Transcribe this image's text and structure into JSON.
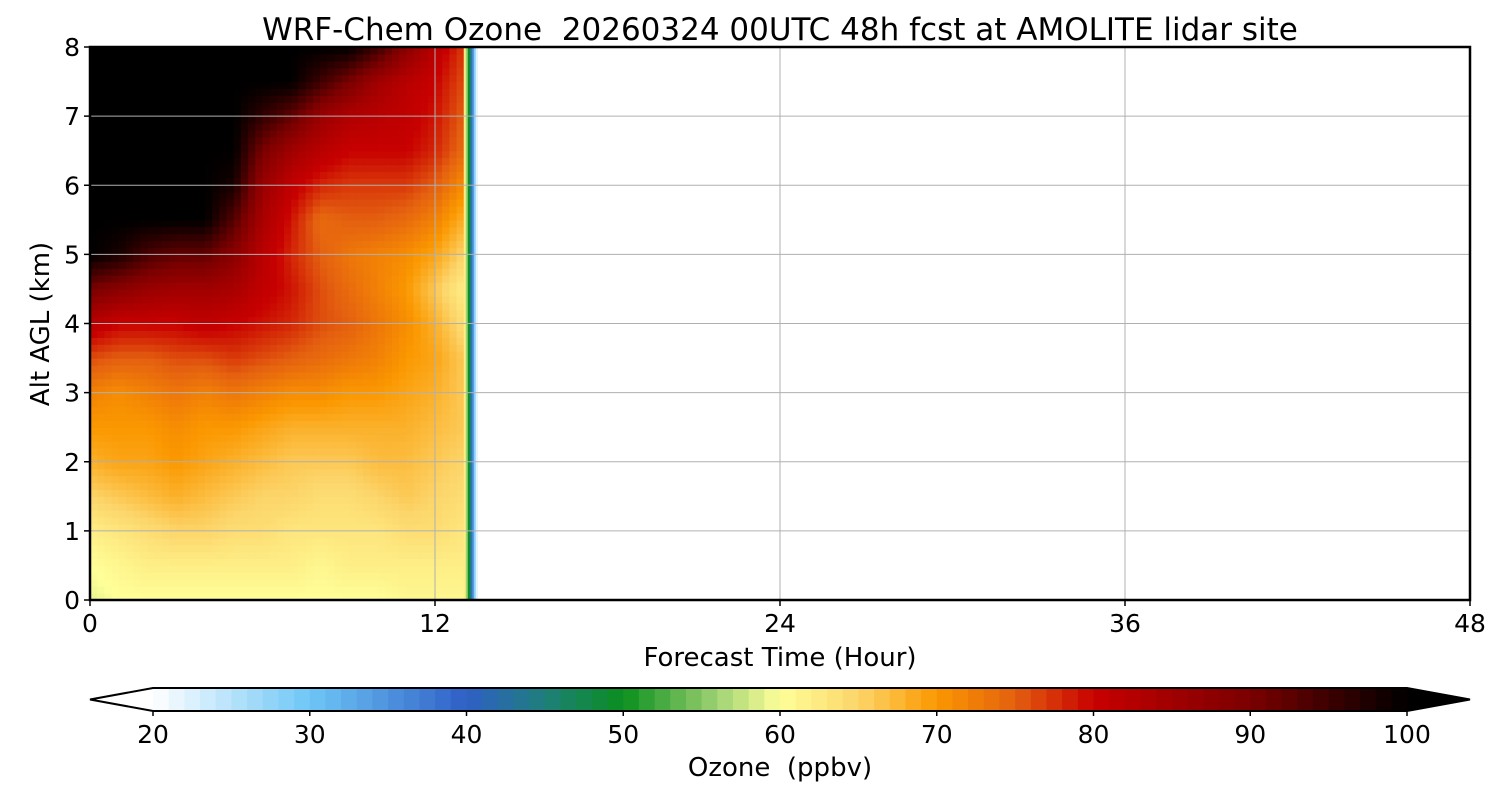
{
  "chart_data": {
    "type": "heatmap",
    "title": "WRF-Chem Ozone  20260324 00UTC 48h fcst at AMOLITE lidar site",
    "xlabel": "Forecast Time (Hour)",
    "ylabel": "Alt AGL (km)",
    "xlim": [
      0,
      48
    ],
    "ylim": [
      0,
      8
    ],
    "x_ticks": [
      0,
      12,
      24,
      36,
      48
    ],
    "y_ticks": [
      0,
      1,
      2,
      3,
      4,
      5,
      6,
      7,
      8
    ],
    "grid": true,
    "data_hours": [
      0,
      1,
      2,
      3,
      4,
      5,
      6,
      7,
      8,
      9,
      10,
      11,
      12,
      13
    ],
    "altitudes_km": [
      0,
      0.5,
      1,
      1.5,
      2,
      2.5,
      3,
      3.5,
      4,
      4.5,
      5,
      5.5,
      6,
      6.5,
      7,
      7.5,
      8
    ],
    "values_ppbv": [
      [
        59,
        60,
        62,
        65,
        68,
        70,
        72,
        76,
        82,
        90,
        100,
        100,
        100,
        100,
        100,
        100,
        100
      ],
      [
        60,
        61,
        63,
        66,
        69,
        70,
        71,
        75,
        80,
        88,
        98,
        100,
        100,
        100,
        100,
        100,
        100
      ],
      [
        60,
        62,
        64,
        67,
        69,
        70,
        72,
        75,
        80,
        86,
        94,
        100,
        100,
        100,
        100,
        100,
        100
      ],
      [
        60,
        62,
        65,
        68,
        70,
        71,
        73,
        76,
        80,
        85,
        92,
        100,
        100,
        100,
        100,
        100,
        100
      ],
      [
        60,
        62,
        65,
        67,
        69,
        70,
        72,
        76,
        81,
        85,
        92,
        100,
        100,
        100,
        100,
        100,
        100
      ],
      [
        60,
        62,
        64,
        66,
        68,
        70,
        73,
        77,
        80,
        84,
        88,
        93,
        98,
        100,
        100,
        100,
        100
      ],
      [
        60,
        62,
        64,
        65,
        67,
        69,
        72,
        76,
        79,
        81,
        82,
        84,
        86,
        90,
        96,
        100,
        100
      ],
      [
        60,
        62,
        63,
        65,
        66,
        68,
        71,
        75,
        78,
        79,
        78,
        79,
        81,
        85,
        92,
        100,
        100
      ],
      [
        60,
        61,
        63,
        64,
        66,
        68,
        71,
        74,
        76,
        76,
        75,
        74,
        78,
        82,
        86,
        95,
        100
      ],
      [
        60,
        62,
        63,
        64,
        66,
        68,
        70,
        73,
        75,
        74,
        73,
        75,
        77,
        80,
        83,
        90,
        100
      ],
      [
        60,
        62,
        63,
        65,
        67,
        68,
        70,
        72,
        73,
        72,
        72,
        75,
        77,
        80,
        82,
        85,
        95
      ],
      [
        61,
        62,
        64,
        66,
        67,
        68,
        69,
        70,
        71,
        70,
        71,
        74,
        77,
        80,
        81,
        82,
        88
      ],
      [
        61,
        62,
        64,
        65,
        66,
        67,
        68,
        69,
        68,
        66,
        69,
        72,
        75,
        78,
        79,
        80,
        82
      ],
      [
        61,
        62,
        63,
        64,
        65,
        66,
        66,
        66,
        64,
        62,
        65,
        68,
        71,
        74,
        75,
        76,
        77
      ]
    ],
    "colorbar": {
      "label": "Ozone  (ppbv)",
      "min": 20,
      "max": 100,
      "extend": "both",
      "ticks": [
        20,
        30,
        40,
        50,
        60,
        70,
        80,
        90,
        100
      ],
      "color_stops": [
        {
          "v": 20,
          "c": "#ffffff"
        },
        {
          "v": 30,
          "c": "#6ec6f6"
        },
        {
          "v": 40,
          "c": "#2f5fc6"
        },
        {
          "v": 45,
          "c": "#1e7f7a"
        },
        {
          "v": 50,
          "c": "#0a8f1e"
        },
        {
          "v": 56,
          "c": "#9fd273"
        },
        {
          "v": 60,
          "c": "#ffff99"
        },
        {
          "v": 65,
          "c": "#fcd56a"
        },
        {
          "v": 70,
          "c": "#fb9800"
        },
        {
          "v": 75,
          "c": "#e46010"
        },
        {
          "v": 80,
          "c": "#c80000"
        },
        {
          "v": 90,
          "c": "#7a0000"
        },
        {
          "v": 100,
          "c": "#000000"
        }
      ]
    }
  }
}
